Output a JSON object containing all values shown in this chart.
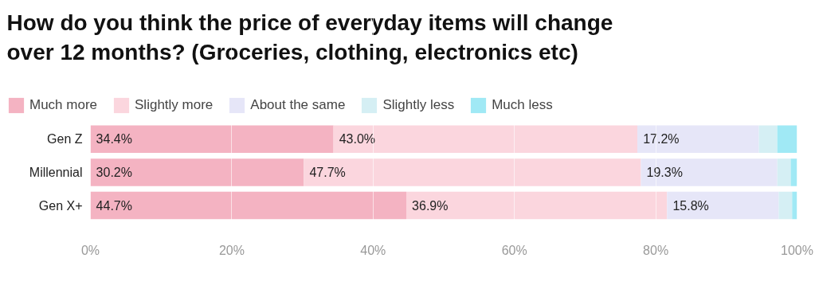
{
  "chart_data": {
    "type": "bar",
    "orientation": "horizontal",
    "stacked": true,
    "title": "How do you think the price of everyday items will change over 12 months? (Groceries, clothing, electronics etc)",
    "categories": [
      "Gen Z",
      "Millennial",
      "Gen X+"
    ],
    "series": [
      {
        "name": "Much more",
        "color": "#f4b3c2",
        "values": [
          34.4,
          30.2,
          44.7
        ],
        "value_labels": [
          "34.4%",
          "30.2%",
          "44.7%"
        ]
      },
      {
        "name": "Slightly more",
        "color": "#fbd6de",
        "values": [
          43.0,
          47.7,
          36.9
        ],
        "value_labels": [
          "43.0%",
          "47.7%",
          "36.9%"
        ]
      },
      {
        "name": "About the same",
        "color": "#e6e6f8",
        "values": [
          17.2,
          19.3,
          15.8
        ],
        "value_labels": [
          "17.2%",
          "19.3%",
          "15.8%"
        ]
      },
      {
        "name": "Slightly less",
        "color": "#d5eff4",
        "values": [
          2.6,
          1.9,
          1.9
        ]
      },
      {
        "name": "Much less",
        "color": "#a0e9f5",
        "values": [
          2.8,
          0.9,
          0.7
        ]
      }
    ],
    "xlim": [
      0,
      100
    ],
    "xticks": [
      {
        "value": 0,
        "label": "0%"
      },
      {
        "value": 20,
        "label": "20%"
      },
      {
        "value": 40,
        "label": "40%"
      },
      {
        "value": 60,
        "label": "60%"
      },
      {
        "value": 80,
        "label": "80%"
      },
      {
        "value": 100,
        "label": "100%"
      }
    ],
    "grid": "x",
    "legend": "top left"
  }
}
